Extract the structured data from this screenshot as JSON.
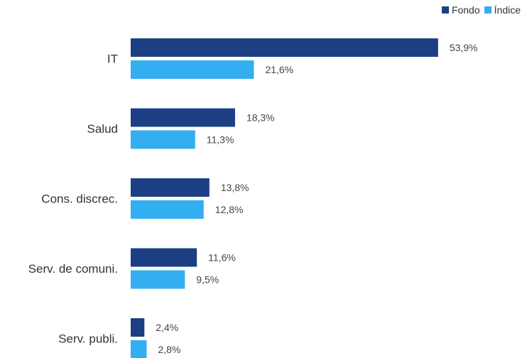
{
  "chart_data": {
    "type": "bar",
    "orientation": "horizontal",
    "categories": [
      "IT",
      "Salud",
      "Cons. discrec.",
      "Serv. de comuni.",
      "Serv. publi."
    ],
    "series": [
      {
        "name": "Fondo",
        "values": [
          53.9,
          18.3,
          13.8,
          11.6,
          2.4
        ],
        "labels": [
          "53,9%",
          "18,3%",
          "13,8%",
          "11,6%",
          "2,4%"
        ],
        "color": "#1c3f84"
      },
      {
        "name": "Índice",
        "values": [
          21.6,
          11.3,
          12.8,
          9.5,
          2.8
        ],
        "labels": [
          "21,6%",
          "11,3%",
          "12,8%",
          "9,5%",
          "2,8%"
        ],
        "color": "#33aef0"
      }
    ],
    "title": "",
    "xlabel": "",
    "ylabel": "",
    "legend_position": "top-right",
    "grid": false
  }
}
